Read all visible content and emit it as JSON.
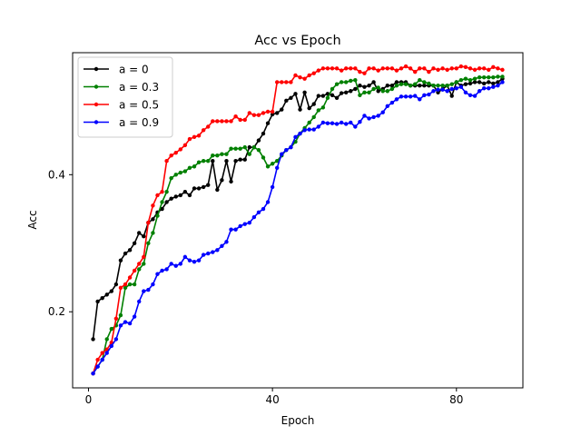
{
  "chart_data": {
    "type": "line",
    "title": "Acc vs Epoch",
    "xlabel": "Epoch",
    "ylabel": "Acc",
    "xlim": [
      -3.45,
      94.45
    ],
    "ylim": [
      0.089,
      0.578
    ],
    "xticks": [
      0,
      40,
      80
    ],
    "xtick_labels": [
      "0",
      "40",
      "80"
    ],
    "yticks": [
      0.2,
      0.4
    ],
    "ytick_labels": [
      "0.2",
      "0.4"
    ],
    "grid": false,
    "legend": "upper left",
    "x": [
      1,
      2,
      3,
      4,
      5,
      6,
      7,
      8,
      9,
      10,
      11,
      12,
      13,
      14,
      15,
      16,
      17,
      18,
      19,
      20,
      21,
      22,
      23,
      24,
      25,
      26,
      27,
      28,
      29,
      30,
      31,
      32,
      33,
      34,
      35,
      36,
      37,
      38,
      39,
      40,
      41,
      42,
      43,
      44,
      45,
      46,
      47,
      48,
      49,
      50,
      51,
      52,
      53,
      54,
      55,
      56,
      57,
      58,
      59,
      60,
      61,
      62,
      63,
      64,
      65,
      66,
      67,
      68,
      69,
      70,
      71,
      72,
      73,
      74,
      75,
      76,
      77,
      78,
      79,
      80,
      81,
      82,
      83,
      84,
      85,
      86,
      87,
      88,
      89,
      90
    ],
    "series": [
      {
        "name": "a = 0",
        "color": "#000000",
        "values": [
          0.16,
          0.215,
          0.22,
          0.225,
          0.23,
          0.24,
          0.275,
          0.285,
          0.29,
          0.3,
          0.315,
          0.31,
          0.33,
          0.335,
          0.345,
          0.35,
          0.36,
          0.365,
          0.368,
          0.37,
          0.375,
          0.37,
          0.38,
          0.38,
          0.382,
          0.385,
          0.42,
          0.378,
          0.392,
          0.42,
          0.39,
          0.42,
          0.422,
          0.422,
          0.44,
          0.44,
          0.45,
          0.46,
          0.475,
          0.488,
          0.49,
          0.495,
          0.508,
          0.512,
          0.518,
          0.495,
          0.52,
          0.497,
          0.503,
          0.515,
          0.515,
          0.518,
          0.516,
          0.512,
          0.519,
          0.52,
          0.522,
          0.525,
          0.53,
          0.528,
          0.53,
          0.535,
          0.522,
          0.525,
          0.53,
          0.53,
          0.535,
          0.535,
          0.535,
          0.53,
          0.53,
          0.53,
          0.53,
          0.53,
          0.53,
          0.52,
          0.525,
          0.53,
          0.515,
          0.535,
          0.53,
          0.532,
          0.533,
          0.535,
          0.535,
          0.533,
          0.535,
          0.533,
          0.535,
          0.54
        ]
      },
      {
        "name": "a = 0.3",
        "color": "#008000",
        "values": [
          0.11,
          0.12,
          0.13,
          0.16,
          0.175,
          0.18,
          0.195,
          0.235,
          0.24,
          0.24,
          0.262,
          0.27,
          0.3,
          0.315,
          0.34,
          0.36,
          0.375,
          0.395,
          0.4,
          0.403,
          0.405,
          0.41,
          0.412,
          0.418,
          0.42,
          0.42,
          0.428,
          0.428,
          0.43,
          0.43,
          0.438,
          0.438,
          0.438,
          0.44,
          0.43,
          0.44,
          0.436,
          0.425,
          0.412,
          0.416,
          0.42,
          0.428,
          0.436,
          0.44,
          0.448,
          0.46,
          0.468,
          0.476,
          0.484,
          0.494,
          0.498,
          0.512,
          0.525,
          0.532,
          0.535,
          0.535,
          0.537,
          0.538,
          0.516,
          0.52,
          0.52,
          0.525,
          0.527,
          0.522,
          0.522,
          0.525,
          0.53,
          0.532,
          0.532,
          0.53,
          0.532,
          0.538,
          0.535,
          0.533,
          0.53,
          0.53,
          0.53,
          0.53,
          0.532,
          0.535,
          0.538,
          0.54,
          0.538,
          0.54,
          0.542,
          0.542,
          0.542,
          0.542,
          0.543,
          0.543
        ]
      },
      {
        "name": "a = 0.5",
        "color": "#ff0000",
        "values": [
          0.11,
          0.13,
          0.14,
          0.145,
          0.155,
          0.19,
          0.235,
          0.24,
          0.25,
          0.26,
          0.27,
          0.28,
          0.33,
          0.355,
          0.37,
          0.375,
          0.42,
          0.428,
          0.432,
          0.437,
          0.443,
          0.452,
          0.455,
          0.457,
          0.465,
          0.47,
          0.478,
          0.478,
          0.478,
          0.478,
          0.478,
          0.485,
          0.48,
          0.48,
          0.49,
          0.487,
          0.487,
          0.49,
          0.492,
          0.492,
          0.535,
          0.535,
          0.535,
          0.535,
          0.545,
          0.542,
          0.54,
          0.545,
          0.548,
          0.552,
          0.555,
          0.555,
          0.555,
          0.555,
          0.552,
          0.555,
          0.555,
          0.555,
          0.55,
          0.548,
          0.555,
          0.555,
          0.552,
          0.555,
          0.555,
          0.555,
          0.552,
          0.555,
          0.558,
          0.555,
          0.55,
          0.555,
          0.555,
          0.55,
          0.555,
          0.553,
          0.555,
          0.553,
          0.555,
          0.555,
          0.558,
          0.557,
          0.555,
          0.553,
          0.555,
          0.555,
          0.553,
          0.557,
          0.555,
          0.553
        ]
      },
      {
        "name": "a = 0.9",
        "color": "#0000ff",
        "values": [
          0.11,
          0.12,
          0.13,
          0.14,
          0.15,
          0.16,
          0.18,
          0.185,
          0.183,
          0.193,
          0.215,
          0.23,
          0.232,
          0.24,
          0.255,
          0.26,
          0.262,
          0.27,
          0.267,
          0.27,
          0.28,
          0.275,
          0.273,
          0.275,
          0.283,
          0.285,
          0.287,
          0.29,
          0.296,
          0.302,
          0.32,
          0.32,
          0.325,
          0.328,
          0.33,
          0.338,
          0.345,
          0.35,
          0.36,
          0.382,
          0.41,
          0.43,
          0.436,
          0.44,
          0.455,
          0.46,
          0.465,
          0.466,
          0.466,
          0.47,
          0.476,
          0.475,
          0.475,
          0.474,
          0.476,
          0.474,
          0.476,
          0.47,
          0.477,
          0.486,
          0.482,
          0.484,
          0.486,
          0.491,
          0.5,
          0.505,
          0.51,
          0.514,
          0.514,
          0.514,
          0.515,
          0.51,
          0.516,
          0.517,
          0.522,
          0.524,
          0.524,
          0.522,
          0.525,
          0.526,
          0.528,
          0.52,
          0.516,
          0.515,
          0.522,
          0.526,
          0.526,
          0.528,
          0.53,
          0.535
        ]
      }
    ]
  }
}
